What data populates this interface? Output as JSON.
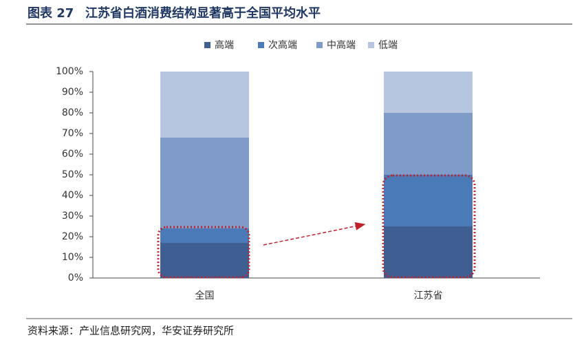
{
  "chart_data": {
    "type": "stacked_bar",
    "figure_label": "图表 27",
    "title": "江苏省白酒消费结构显著高于全国平均水平",
    "source": "资料来源：产业信息研究网，华安证券研究所",
    "categories": [
      "全国",
      "江苏省"
    ],
    "series": [
      {
        "name": "高端",
        "color": "#3f5f93",
        "values": [
          17,
          25
        ]
      },
      {
        "name": "次高端",
        "color": "#4a7ab8",
        "values": [
          7,
          25
        ]
      },
      {
        "name": "中高端",
        "color": "#7f9cc9",
        "values": [
          44,
          30
        ]
      },
      {
        "name": "低端",
        "color": "#b7c6e0",
        "values": [
          32,
          20
        ]
      }
    ],
    "ylim": [
      0,
      100
    ],
    "yticks": [
      {
        "value": 0,
        "label": "0%"
      },
      {
        "value": 10,
        "label": "10%"
      },
      {
        "value": 20,
        "label": "20%"
      },
      {
        "value": 30,
        "label": "30%"
      },
      {
        "value": 40,
        "label": "40%"
      },
      {
        "value": 50,
        "label": "50%"
      },
      {
        "value": 60,
        "label": "60%"
      },
      {
        "value": 70,
        "label": "70%"
      },
      {
        "value": 80,
        "label": "80%"
      },
      {
        "value": 90,
        "label": "90%"
      },
      {
        "value": 100,
        "label": "100%"
      }
    ],
    "grid": false
  }
}
